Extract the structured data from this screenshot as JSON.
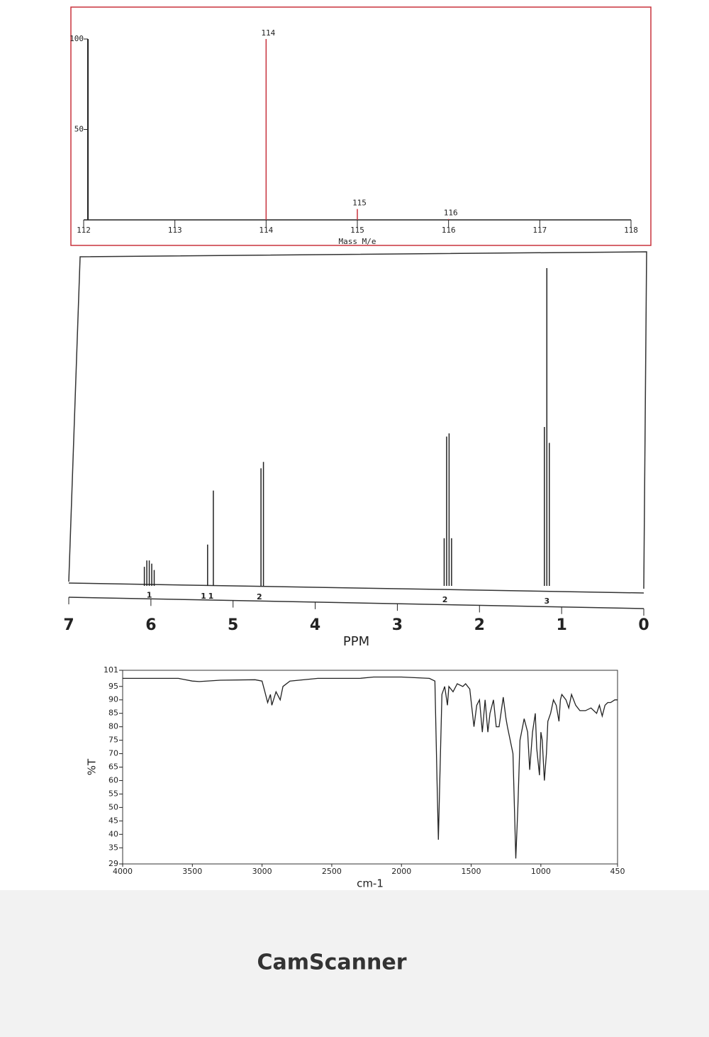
{
  "chart_data": [
    {
      "type": "bar",
      "xlabel": "Mass M/e",
      "color": "#c8323c",
      "x": [
        114,
        115,
        116
      ],
      "values": [
        100,
        6,
        0.5
      ],
      "xlim": [
        112,
        118
      ],
      "xticks": [
        112,
        113,
        114,
        115,
        116,
        117,
        118
      ],
      "ylim": [
        0,
        100
      ],
      "yticks": [
        50,
        100
      ],
      "grid": false
    },
    {
      "type": "bar",
      "xlabel": "PPM",
      "color": "#222222",
      "x": [
        6.08,
        6.05,
        6.02,
        5.99,
        5.96,
        5.31,
        5.24,
        4.66,
        4.63,
        2.43,
        2.4,
        2.37,
        2.34,
        1.21,
        1.18,
        1.15
      ],
      "values": [
        6,
        8,
        8,
        7,
        5,
        13,
        30,
        37,
        39,
        15,
        47,
        48,
        15,
        50,
        100,
        45
      ],
      "xlim": [
        7,
        0
      ],
      "xticks": [
        7,
        6,
        5,
        4,
        3,
        2,
        1,
        0
      ],
      "ylim": [
        0,
        100
      ],
      "integrals": {
        "x": [
          6.02,
          5.36,
          5.27,
          4.68,
          2.42,
          1.18
        ],
        "values": [
          1,
          1,
          1,
          2,
          2,
          3
        ]
      },
      "grid": false
    },
    {
      "type": "line",
      "xlabel": "cm-1",
      "ylabel": "%T",
      "color": "#222222",
      "x": [
        4000,
        3600,
        3500,
        3450,
        3300,
        3050,
        3000,
        2980,
        2960,
        2940,
        2930,
        2900,
        2870,
        2850,
        2800,
        2600,
        2300,
        2200,
        2000,
        1800,
        1760,
        1745,
        1735,
        1725,
        1710,
        1690,
        1670,
        1660,
        1630,
        1600,
        1560,
        1540,
        1510,
        1480,
        1460,
        1440,
        1420,
        1400,
        1380,
        1365,
        1340,
        1320,
        1300,
        1270,
        1250,
        1240,
        1200,
        1180,
        1165,
        1150,
        1120,
        1095,
        1080,
        1060,
        1040,
        1030,
        1010,
        1000,
        990,
        975,
        960,
        950,
        930,
        910,
        890,
        870,
        860,
        850,
        820,
        800,
        780,
        750,
        720,
        680,
        640,
        600,
        580,
        560,
        540,
        520,
        500,
        470,
        450
      ],
      "values": [
        98,
        98,
        97,
        96.8,
        97.3,
        97.5,
        97,
        93,
        89,
        92,
        88,
        93,
        90,
        95,
        97,
        98,
        98,
        98.5,
        98.5,
        98,
        97,
        60,
        38,
        60,
        92,
        95,
        88,
        95,
        93,
        96,
        95,
        96,
        94,
        80,
        88,
        90,
        78,
        90,
        78,
        85,
        90,
        80,
        80,
        91,
        83,
        80,
        70,
        31,
        50,
        75,
        83,
        78,
        64,
        78,
        85,
        72,
        62,
        78,
        75,
        60,
        70,
        82,
        85,
        90,
        88,
        82,
        90,
        92,
        90,
        87,
        92,
        88,
        86,
        86,
        87,
        85,
        88,
        84,
        88,
        89,
        89,
        90,
        90
      ],
      "xlim": [
        4000,
        450
      ],
      "xticks": [
        4000,
        3500,
        3000,
        2500,
        2000,
        1500,
        1000,
        450
      ],
      "ylim": [
        29,
        101
      ],
      "yticks": [
        29,
        35,
        40,
        45,
        50,
        55,
        60,
        65,
        70,
        75,
        80,
        85,
        90,
        95,
        101
      ],
      "grid": false
    }
  ],
  "footer": "CamScanner"
}
